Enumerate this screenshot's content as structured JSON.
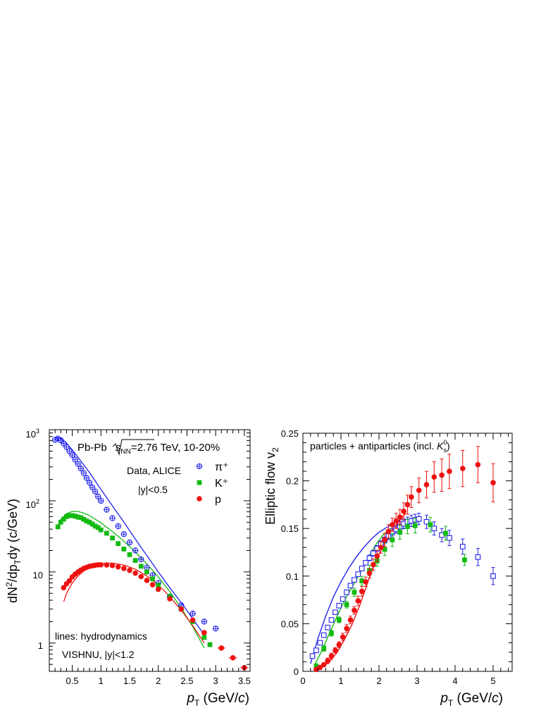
{
  "colors": {
    "pion": "#2222ee",
    "kaon": "#11bb11",
    "proton": "#ee1111",
    "axis": "#000000"
  },
  "chart_data": [
    {
      "type": "scatter",
      "panel": "spectra",
      "yscale": "log",
      "xlim": [
        0.1,
        3.6
      ],
      "ylim": [
        0.4,
        1000
      ],
      "xticks": [
        "0.5",
        "1",
        "1.5",
        "2",
        "2.5",
        "3",
        "3.5"
      ],
      "yticks": [
        {
          "base": "1",
          "exp": ""
        },
        {
          "base": "10",
          "exp": ""
        },
        {
          "base": "10",
          "exp": "2"
        },
        {
          "base": "10",
          "exp": "3"
        }
      ],
      "ylabel_parts": [
        "dN",
        "2",
        "/dp",
        "T",
        "dy (c/GeV)"
      ],
      "xlabel_parts": [
        "p",
        "T",
        " (GeV/",
        "c",
        ")"
      ],
      "annotations": {
        "system_pre": "Pb-Pb ",
        "system_s": "s",
        "system_sub": "NN",
        "system_post": "=2.76 TeV, 10-20%",
        "data_label": "Data, ALICE",
        "rapidity_data": "|y|<0.5",
        "lines_label": "lines: hydrodynamics",
        "model_label": "VISHNU, |y|<1.2"
      },
      "legend": [
        "π⁺",
        "K⁺",
        "p"
      ],
      "series": [
        {
          "name": "π⁺",
          "x": [
            0.2,
            0.25,
            0.3,
            0.35,
            0.4,
            0.45,
            0.5,
            0.55,
            0.6,
            0.65,
            0.7,
            0.75,
            0.8,
            0.85,
            0.9,
            0.95,
            1.0,
            1.1,
            1.2,
            1.3,
            1.4,
            1.5,
            1.6,
            1.7,
            1.8,
            1.9,
            2.0,
            2.2,
            2.4,
            2.6,
            2.8,
            3.0
          ],
          "y": [
            720,
            750,
            710,
            640,
            570,
            500,
            440,
            380,
            330,
            285,
            245,
            210,
            180,
            155,
            135,
            115,
            100,
            75,
            57,
            44,
            34,
            26,
            20,
            15,
            11.5,
            9,
            7,
            4.5,
            3.4,
            2.6,
            2.0,
            1.6
          ]
        },
        {
          "name": "K⁺",
          "x": [
            0.25,
            0.3,
            0.35,
            0.4,
            0.45,
            0.5,
            0.55,
            0.6,
            0.65,
            0.7,
            0.75,
            0.8,
            0.85,
            0.9,
            0.95,
            1.0,
            1.1,
            1.2,
            1.3,
            1.4,
            1.5,
            1.6,
            1.7,
            1.8,
            1.9,
            2.0,
            2.2,
            2.4,
            2.6,
            2.8,
            2.9
          ],
          "y": [
            43,
            50,
            55,
            60,
            62,
            62,
            61,
            59,
            58,
            55,
            52,
            50,
            47,
            44,
            42,
            39,
            35,
            30,
            25,
            21,
            17.5,
            14.5,
            12,
            10,
            8,
            6.5,
            4.5,
            3.0,
            2.0,
            1.2,
            0.95
          ]
        },
        {
          "name": "p",
          "x": [
            0.35,
            0.4,
            0.45,
            0.5,
            0.55,
            0.6,
            0.65,
            0.7,
            0.75,
            0.8,
            0.85,
            0.9,
            0.95,
            1.0,
            1.1,
            1.2,
            1.3,
            1.4,
            1.5,
            1.6,
            1.7,
            1.8,
            1.9,
            2.0,
            2.2,
            2.4,
            2.6,
            2.8,
            3.1,
            3.3,
            3.5
          ],
          "y": [
            6,
            6.8,
            7.5,
            8.5,
            9.3,
            10,
            10.6,
            11.2,
            11.6,
            12,
            12.2,
            12.4,
            12.6,
            12.6,
            12.5,
            12.3,
            11.8,
            11.2,
            10.5,
            9.6,
            8.6,
            7.6,
            6.6,
            5.7,
            4.2,
            3.0,
            2.1,
            1.4,
            0.85,
            0.62,
            0.45
          ]
        }
      ],
      "model_curves": [
        {
          "name": "π⁺",
          "x": [
            0.2,
            0.3,
            0.4,
            0.5,
            0.6,
            0.8,
            1.0,
            1.2,
            1.4,
            1.6,
            1.8,
            2.0,
            2.2,
            2.4,
            2.6,
            2.8
          ],
          "y": [
            780,
            760,
            650,
            520,
            410,
            250,
            145,
            85,
            50,
            29,
            17,
            10,
            6,
            3.7,
            2.2,
            1.3
          ]
        },
        {
          "name": "K⁺",
          "x": [
            0.25,
            0.3,
            0.4,
            0.5,
            0.6,
            0.7,
            0.8,
            1.0,
            1.2,
            1.4,
            1.6,
            1.8,
            2.0,
            2.2,
            2.4,
            2.6,
            2.8
          ],
          "y": [
            45,
            55,
            66,
            71,
            71,
            67,
            62,
            49,
            37,
            27,
            19,
            13,
            8.5,
            5.3,
            3.1,
            1.7,
            0.85
          ]
        },
        {
          "name": "p",
          "x": [
            0.35,
            0.4,
            0.5,
            0.6,
            0.7,
            0.8,
            0.9,
            1.0,
            1.1,
            1.2,
            1.4,
            1.6,
            1.8,
            2.0,
            2.2,
            2.4,
            2.6,
            2.8
          ],
          "y": [
            3.8,
            5,
            7,
            8.8,
            10.3,
            11.5,
            12.4,
            13,
            13.3,
            13.3,
            12.5,
            10.9,
            8.8,
            6.6,
            4.5,
            2.9,
            1.75,
            1.0
          ]
        }
      ]
    },
    {
      "type": "scatter",
      "panel": "flow",
      "xlim": [
        0,
        5.5
      ],
      "ylim": [
        0,
        0.25
      ],
      "xticks": [
        "0",
        "1",
        "2",
        "3",
        "4",
        "5"
      ],
      "yticks": [
        "0",
        "0.05",
        "0.1",
        "0.15",
        "0.2",
        "0.25"
      ],
      "ylabel_parts": [
        "Elliptic flow v",
        "2"
      ],
      "xlabel_parts": [
        "p",
        "T",
        " (GeV/",
        "c",
        ")"
      ],
      "annotations": {
        "selection_pre": "particles + antiparticles (incl. ",
        "selection_sym": "K",
        "selection_sup": "0",
        "selection_sub": "s",
        "selection_post": ")"
      },
      "series": [
        {
          "name": "π⁺",
          "x": [
            0.25,
            0.35,
            0.45,
            0.55,
            0.65,
            0.75,
            0.85,
            0.95,
            1.05,
            1.15,
            1.25,
            1.35,
            1.45,
            1.55,
            1.65,
            1.75,
            1.85,
            1.95,
            2.05,
            2.15,
            2.25,
            2.35,
            2.45,
            2.55,
            2.65,
            2.75,
            2.85,
            2.95,
            3.05,
            3.25,
            3.45,
            3.65,
            3.85,
            4.2,
            4.6,
            5.0
          ],
          "y": [
            0.016,
            0.022,
            0.03,
            0.038,
            0.046,
            0.054,
            0.062,
            0.069,
            0.076,
            0.083,
            0.09,
            0.096,
            0.102,
            0.108,
            0.114,
            0.119,
            0.124,
            0.129,
            0.134,
            0.138,
            0.142,
            0.146,
            0.149,
            0.152,
            0.155,
            0.157,
            0.158,
            0.159,
            0.16,
            0.157,
            0.15,
            0.143,
            0.14,
            0.131,
            0.12,
            0.1
          ],
          "err": [
            0.002,
            0.002,
            0.002,
            0.002,
            0.002,
            0.002,
            0.002,
            0.002,
            0.002,
            0.002,
            0.002,
            0.002,
            0.002,
            0.002,
            0.002,
            0.003,
            0.003,
            0.003,
            0.003,
            0.003,
            0.004,
            0.004,
            0.004,
            0.005,
            0.005,
            0.005,
            0.006,
            0.006,
            0.006,
            0.007,
            0.007,
            0.007,
            0.008,
            0.008,
            0.009,
            0.009
          ]
        },
        {
          "name": "K⁺",
          "x": [
            0.35,
            0.55,
            0.75,
            0.95,
            1.15,
            1.35,
            1.55,
            1.75,
            1.95,
            2.15,
            2.35,
            2.55,
            2.75,
            2.95,
            3.35,
            3.75,
            4.25
          ],
          "y": [
            0.005,
            0.024,
            0.04,
            0.054,
            0.07,
            0.083,
            0.095,
            0.106,
            0.116,
            0.128,
            0.138,
            0.146,
            0.152,
            0.153,
            0.154,
            0.145,
            0.117
          ]
        },
        {
          "name": "p",
          "x": [
            0.35,
            0.45,
            0.55,
            0.65,
            0.75,
            0.85,
            0.95,
            1.05,
            1.15,
            1.25,
            1.35,
            1.45,
            1.55,
            1.65,
            1.75,
            1.85,
            1.95,
            2.05,
            2.15,
            2.25,
            2.35,
            2.45,
            2.55,
            2.65,
            2.75,
            2.85,
            3.05,
            3.25,
            3.45,
            3.65,
            3.85,
            4.2,
            4.6,
            5.0
          ],
          "y": [
            0.002,
            0.004,
            0.007,
            0.011,
            0.016,
            0.022,
            0.028,
            0.036,
            0.045,
            0.054,
            0.064,
            0.074,
            0.084,
            0.094,
            0.103,
            0.112,
            0.121,
            0.13,
            0.138,
            0.147,
            0.154,
            0.158,
            0.162,
            0.168,
            0.175,
            0.183,
            0.19,
            0.196,
            0.204,
            0.206,
            0.21,
            0.213,
            0.217,
            0.198
          ],
          "err": [
            0.002,
            0.002,
            0.002,
            0.003,
            0.003,
            0.003,
            0.003,
            0.004,
            0.004,
            0.004,
            0.004,
            0.005,
            0.005,
            0.005,
            0.005,
            0.006,
            0.006,
            0.006,
            0.007,
            0.007,
            0.007,
            0.008,
            0.008,
            0.009,
            0.01,
            0.011,
            0.013,
            0.014,
            0.016,
            0.017,
            0.018,
            0.019,
            0.019,
            0.02
          ]
        }
      ],
      "model_curves": [
        {
          "name": "π⁺",
          "x": [
            0.2,
            0.4,
            0.6,
            0.8,
            1.0,
            1.2,
            1.4,
            1.6,
            1.8,
            2.0,
            2.2,
            2.4,
            2.6
          ],
          "y": [
            0.008,
            0.035,
            0.058,
            0.078,
            0.094,
            0.108,
            0.12,
            0.13,
            0.139,
            0.146,
            0.151,
            0.156,
            0.16
          ]
        },
        {
          "name": "K⁺",
          "x": [
            0.3,
            0.5,
            0.7,
            0.9,
            1.1,
            1.3,
            1.5,
            1.7,
            1.9,
            2.1,
            2.3,
            2.5,
            2.7
          ],
          "y": [
            0.006,
            0.022,
            0.04,
            0.058,
            0.075,
            0.089,
            0.103,
            0.118,
            0.132,
            0.143,
            0.15,
            0.149,
            0.15
          ]
        },
        {
          "name": "p",
          "x": [
            0.3,
            0.5,
            0.7,
            0.9,
            1.1,
            1.3,
            1.5,
            1.7,
            1.9,
            2.1,
            2.3,
            2.5,
            2.7
          ],
          "y": [
            0.001,
            0.004,
            0.01,
            0.02,
            0.034,
            0.05,
            0.07,
            0.093,
            0.115,
            0.131,
            0.145,
            0.156,
            0.166
          ]
        }
      ]
    }
  ]
}
